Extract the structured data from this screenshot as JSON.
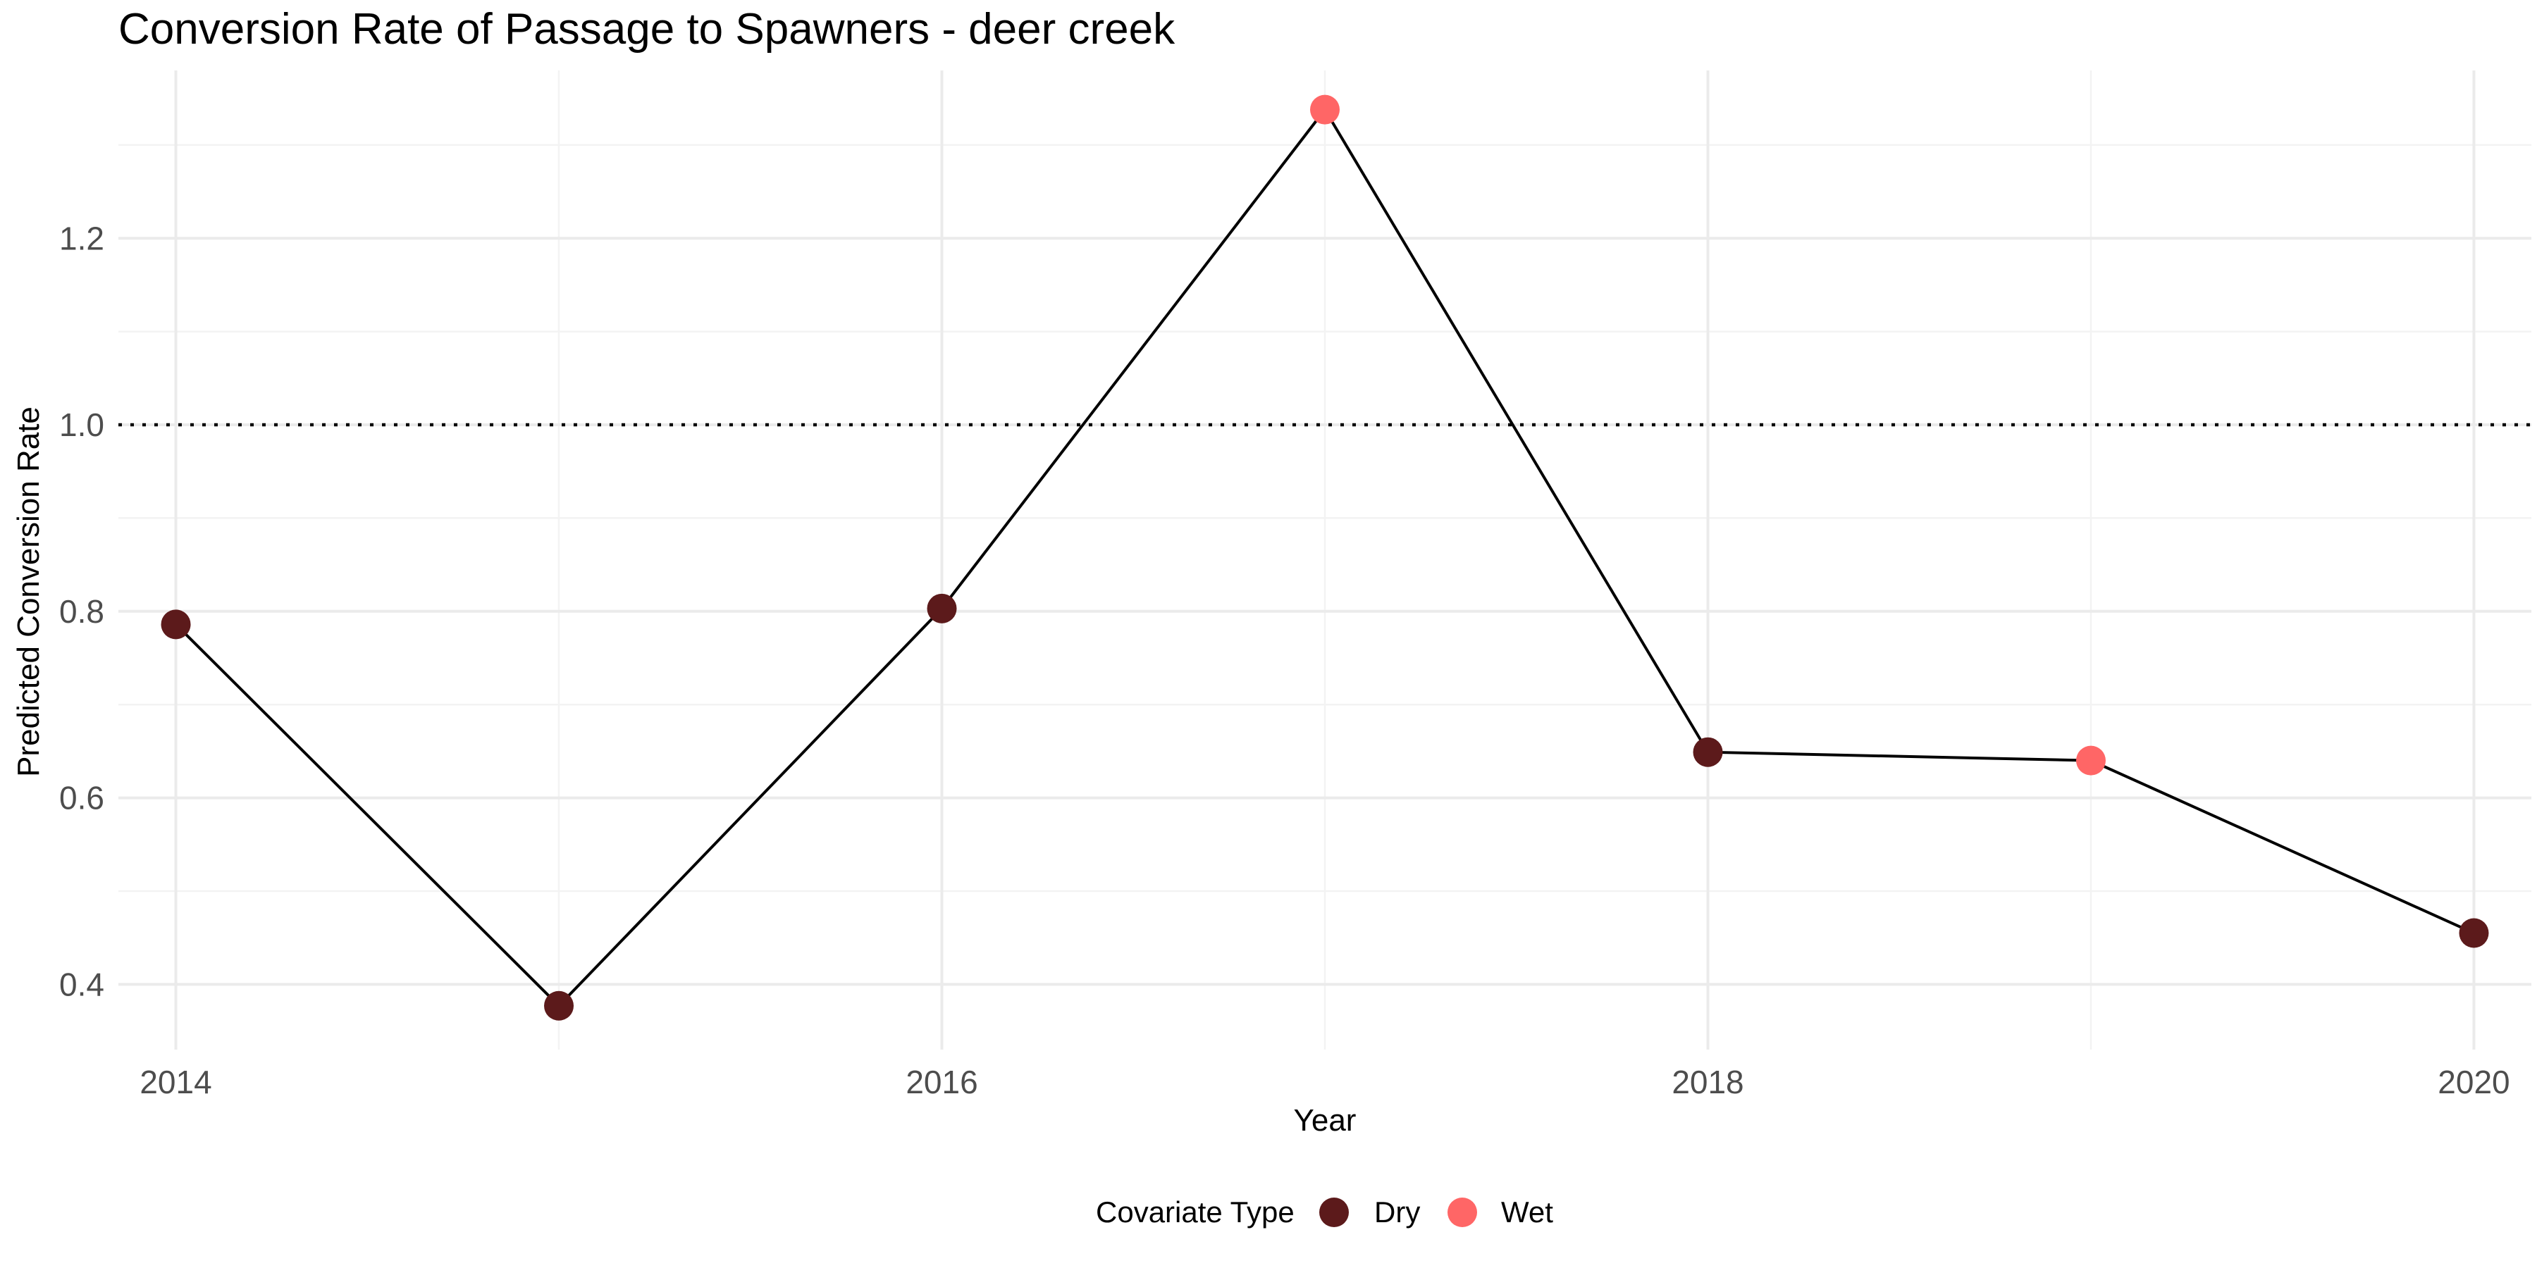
{
  "chart_data": {
    "type": "line",
    "title": "Conversion Rate of Passage to Spawners - deer creek",
    "xlabel": "Year",
    "ylabel": "Predicted Conversion Rate",
    "x": [
      2014,
      2015,
      2016,
      2017,
      2018,
      2019,
      2020
    ],
    "y": [
      0.786,
      0.377,
      0.803,
      1.338,
      0.649,
      0.64,
      0.455
    ],
    "covariate_type": [
      "Dry",
      "Dry",
      "Dry",
      "Wet",
      "Dry",
      "Wet",
      "Dry"
    ],
    "xlim": [
      2013.85,
      2020.15
    ],
    "ylim": [
      0.33,
      1.38
    ],
    "x_ticks": [
      2014,
      2016,
      2018,
      2020
    ],
    "x_tick_labels": [
      "2014",
      "2016",
      "2018",
      "2020"
    ],
    "y_ticks": [
      0.4,
      0.6,
      0.8,
      1.0,
      1.2
    ],
    "y_tick_labels": [
      "0.4",
      "0.6",
      "0.8",
      "1.0",
      "1.2"
    ],
    "reference_line": {
      "y": 1.0,
      "style": "dotted"
    },
    "grid": true,
    "legend": {
      "title": "Covariate Type",
      "placement": "bottom",
      "entries": [
        {
          "label": "Dry",
          "color": "#5c1a1b"
        },
        {
          "label": "Wet",
          "color": "#ff6666"
        }
      ]
    },
    "line_color": "#000000"
  }
}
